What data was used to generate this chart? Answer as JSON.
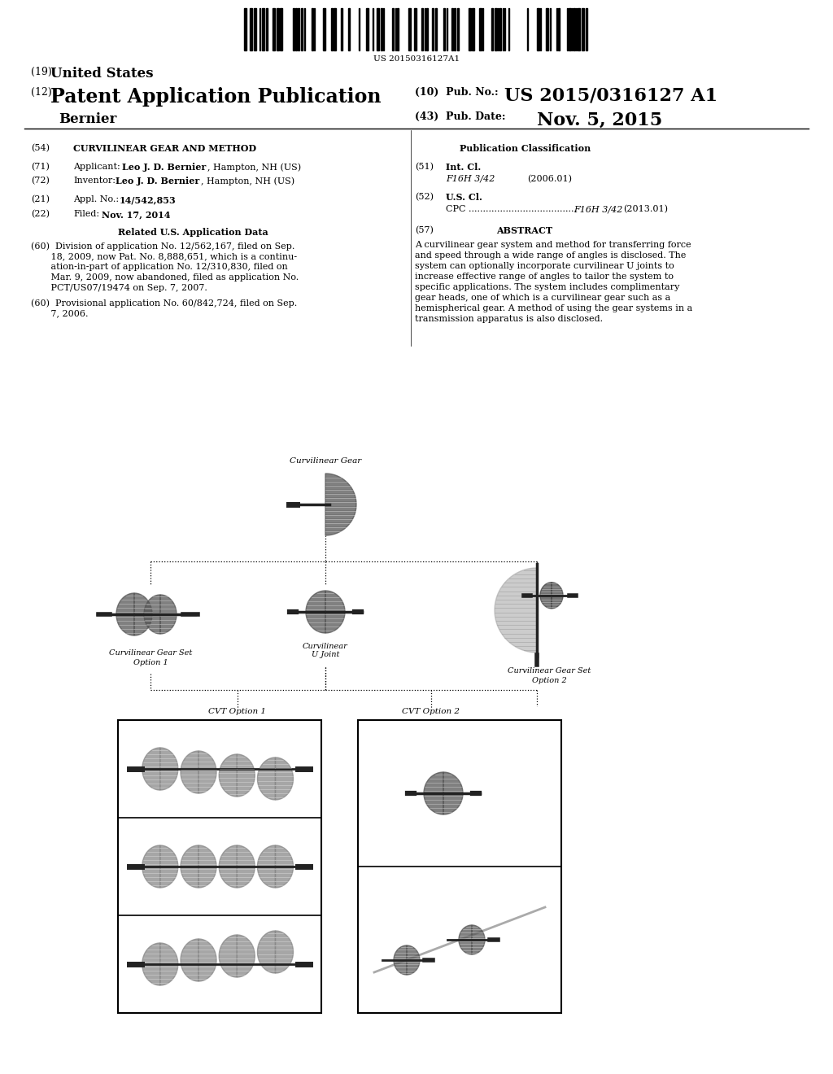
{
  "bg_color": "#ffffff",
  "barcode_text": "US 20150316127A1",
  "title_19": "(19) United States",
  "title_12_pre": "(12) ",
  "title_12_bold": "Patent Application Publication",
  "title_name": "Bernier",
  "pub_no_label": "(10) Pub. No.:",
  "pub_no": "US 2015/0316127 A1",
  "pub_date_label": "(43) Pub. Date:",
  "pub_date": "Nov. 5, 2015",
  "field54_label": "(54)",
  "field54": "CURVILINEAR GEAR AND METHOD",
  "field71_label": "(71)",
  "field72_label": "(72)",
  "field21_label": "(21)",
  "field22_label": "(22)",
  "related_title": "Related U.S. Application Data",
  "pub_class_title": "Publication Classification",
  "field51_label": "(51)",
  "field52_label": "(52)",
  "field57_label": "(57)",
  "field57_title": "ABSTRACT",
  "abstract_text": "A curvilinear gear system and method for transferring force\nand speed through a wide range of angles is disclosed. The\nsystem can optionally incorporate curvilinear U joints to\nincrease effective range of angles to tailor the system to\nspecific applications. The system includes complimentary\ngear heads, one of which is a curvilinear gear such as a\nhemispherical gear. A method of using the gear systems in a\ntransmission apparatus is also disclosed.",
  "diagram_label_top": "Curvilinear Gear",
  "diagram_label_left1": "Curvilinear Gear Set",
  "diagram_label_left2": "Option 1",
  "diagram_label_center1": "Curvilinear",
  "diagram_label_center2": "U Joint",
  "diagram_label_right1": "Curvilinear Gear Set",
  "diagram_label_right2": "Option 2",
  "diagram_label_cvt1": "CVT Option 1",
  "diagram_label_cvt2": "CVT Option 2",
  "gear_color": "#555555",
  "gear_light": "#aaaaaa",
  "shaft_color": "#222222"
}
